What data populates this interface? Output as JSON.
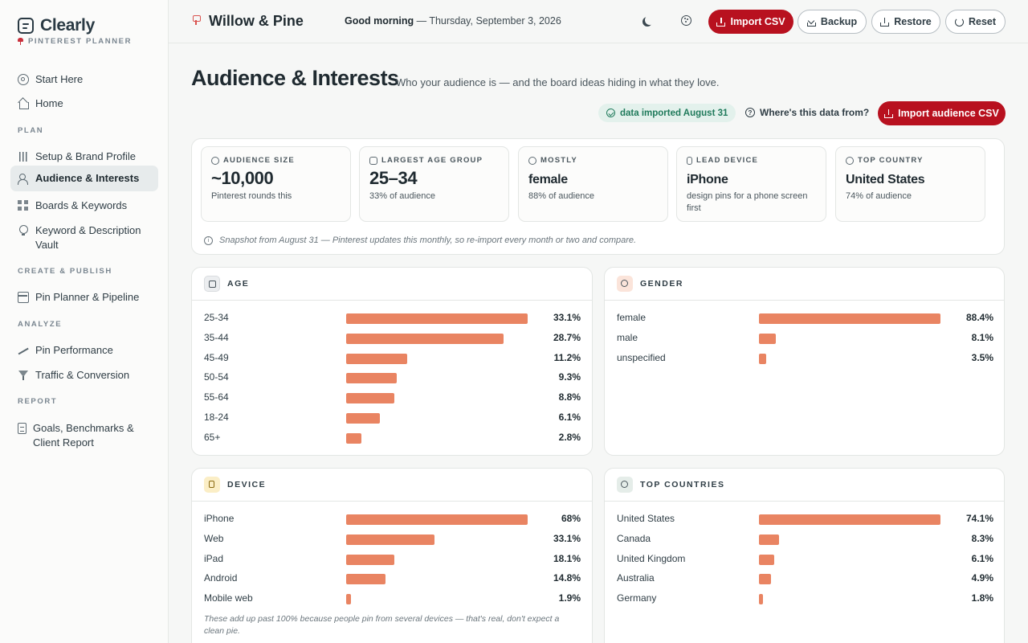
{
  "brand": {
    "name": "Clearly",
    "subtitle": "PINTEREST PLANNER"
  },
  "nav": {
    "start_here": "Start Here",
    "home": "Home",
    "section_plan": "PLAN",
    "setup": "Setup & Brand Profile",
    "audience": "Audience & Interests",
    "boards": "Boards & Keywords",
    "vault": "Keyword & Description Vault",
    "section_create": "CREATE & PUBLISH",
    "planner": "Pin Planner & Pipeline",
    "section_analyze": "ANALYZE",
    "performance": "Pin Performance",
    "traffic": "Traffic & Conversion",
    "section_report": "REPORT",
    "goals": "Goals, Benchmarks & Client Report"
  },
  "topbar": {
    "workspace": "Willow & Pine",
    "greeting_strong": "Good morning",
    "greeting_rest": " — Thursday, September 3, 2026",
    "import_csv": "Import CSV",
    "backup": "Backup",
    "restore": "Restore",
    "reset": "Reset"
  },
  "page": {
    "title": "Audience & Interests",
    "subtitle": "Who your audience is — and the board ideas hiding in what they love.",
    "imported_pill": "data imported August 31",
    "help_link": "Where's this data from?",
    "import_audience": "Import audience CSV"
  },
  "stats": [
    {
      "label": "AUDIENCE SIZE",
      "value": "~10,000",
      "note": "Pinterest rounds this"
    },
    {
      "label": "LARGEST AGE GROUP",
      "value": "25–34",
      "note": "33% of audience"
    },
    {
      "label": "MOSTLY",
      "value": "female",
      "note": "88% of audience"
    },
    {
      "label": "LEAD DEVICE",
      "value": "iPhone",
      "note": "design pins for a phone screen first"
    },
    {
      "label": "TOP COUNTRY",
      "value": "United States",
      "note": "74% of audience"
    }
  ],
  "snapshot_note": "Snapshot from August 31 — Pinterest updates this monthly, so re-import every month or two and compare.",
  "colors": {
    "accent": "#b8111f",
    "bar": "#e98462",
    "success": "#1f7a5b"
  },
  "panels": {
    "age": {
      "title": "AGE",
      "rows": [
        {
          "label": "25-34",
          "value": 33.1,
          "pct": "33.1%"
        },
        {
          "label": "35-44",
          "value": 28.7,
          "pct": "28.7%"
        },
        {
          "label": "45-49",
          "value": 11.2,
          "pct": "11.2%"
        },
        {
          "label": "50-54",
          "value": 9.3,
          "pct": "9.3%"
        },
        {
          "label": "55-64",
          "value": 8.8,
          "pct": "8.8%"
        },
        {
          "label": "18-24",
          "value": 6.1,
          "pct": "6.1%"
        },
        {
          "label": "65+",
          "value": 2.8,
          "pct": "2.8%"
        }
      ]
    },
    "gender": {
      "title": "GENDER",
      "rows": [
        {
          "label": "female",
          "value": 88.4,
          "pct": "88.4%"
        },
        {
          "label": "male",
          "value": 8.1,
          "pct": "8.1%"
        },
        {
          "label": "unspecified",
          "value": 3.5,
          "pct": "3.5%"
        }
      ]
    },
    "device": {
      "title": "DEVICE",
      "rows": [
        {
          "label": "iPhone",
          "value": 68,
          "pct": "68%"
        },
        {
          "label": "Web",
          "value": 33.1,
          "pct": "33.1%"
        },
        {
          "label": "iPad",
          "value": 18.1,
          "pct": "18.1%"
        },
        {
          "label": "Android",
          "value": 14.8,
          "pct": "14.8%"
        },
        {
          "label": "Mobile web",
          "value": 1.9,
          "pct": "1.9%"
        }
      ],
      "note": "These add up past 100% because people pin from several devices — that's real, don't expect a clean pie."
    },
    "countries": {
      "title": "TOP COUNTRIES",
      "rows": [
        {
          "label": "United States",
          "value": 74.1,
          "pct": "74.1%"
        },
        {
          "label": "Canada",
          "value": 8.3,
          "pct": "8.3%"
        },
        {
          "label": "United Kingdom",
          "value": 6.1,
          "pct": "6.1%"
        },
        {
          "label": "Australia",
          "value": 4.9,
          "pct": "4.9%"
        },
        {
          "label": "Germany",
          "value": 1.8,
          "pct": "1.8%"
        }
      ]
    }
  }
}
